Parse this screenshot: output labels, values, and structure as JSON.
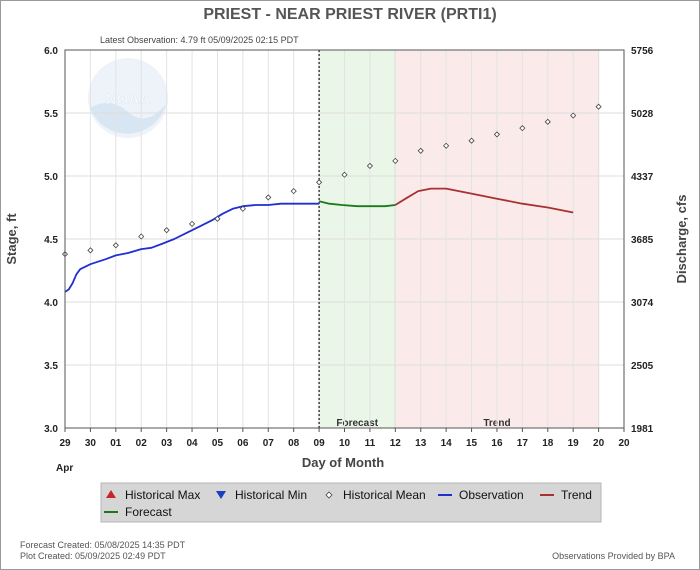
{
  "chart_data": {
    "type": "line",
    "title": "PRIEST - NEAR PRIEST RIVER  (PRTI1)",
    "subtitle": "Latest Observation: 4.79 ft 05/09/2025 02:15 PDT",
    "xlabel": "Day of Month",
    "ylabel": "Stage, ft",
    "y2label": "Discharge, cfs",
    "month_label": "Apr",
    "x_ticks": [
      "29",
      "30",
      "01",
      "02",
      "03",
      "04",
      "05",
      "06",
      "07",
      "08",
      "09",
      "10",
      "11",
      "12",
      "13",
      "14",
      "15",
      "16",
      "17",
      "18",
      "19",
      "20"
    ],
    "ylim": [
      3.0,
      6.0
    ],
    "y_ticks": [
      "3.0",
      "3.5",
      "4.0",
      "4.5",
      "5.0",
      "5.5",
      "6.0"
    ],
    "y2_ticks": [
      "1981",
      "2505",
      "3074",
      "3685",
      "4337",
      "5028",
      "5756"
    ],
    "bands": [
      {
        "label": "Forecast",
        "from": 10.0,
        "to": 13.0,
        "color": "#eaf6e8",
        "edge": "#7fcf7f"
      },
      {
        "label": "Trend",
        "from": 13.0,
        "to": 21.0,
        "color": "#fbeaea",
        "edge": "#e6b5b5"
      }
    ],
    "now_x": 10.0,
    "series": [
      {
        "name": "Observation",
        "color": "#1f2fd0",
        "points": [
          [
            0,
            4.08
          ],
          [
            0.15,
            4.1
          ],
          [
            0.3,
            4.15
          ],
          [
            0.45,
            4.22
          ],
          [
            0.6,
            4.26
          ],
          [
            0.8,
            4.28
          ],
          [
            1,
            4.3
          ],
          [
            1.3,
            4.32
          ],
          [
            1.6,
            4.34
          ],
          [
            2,
            4.37
          ],
          [
            2.5,
            4.39
          ],
          [
            3,
            4.42
          ],
          [
            3.4,
            4.43
          ],
          [
            3.8,
            4.46
          ],
          [
            4.3,
            4.5
          ],
          [
            4.8,
            4.55
          ],
          [
            5.3,
            4.6
          ],
          [
            5.8,
            4.65
          ],
          [
            6.2,
            4.7
          ],
          [
            6.6,
            4.74
          ],
          [
            7,
            4.76
          ],
          [
            7.5,
            4.77
          ],
          [
            8,
            4.77
          ],
          [
            8.5,
            4.78
          ],
          [
            9,
            4.78
          ],
          [
            9.5,
            4.78
          ],
          [
            10,
            4.78
          ]
        ]
      },
      {
        "name": "Forecast",
        "color": "#1a7a1a",
        "points": [
          [
            10,
            4.8
          ],
          [
            10.4,
            4.78
          ],
          [
            10.9,
            4.77
          ],
          [
            11.5,
            4.76
          ],
          [
            12,
            4.76
          ],
          [
            12.6,
            4.76
          ],
          [
            13,
            4.77
          ]
        ]
      },
      {
        "name": "Trend",
        "color": "#a83232",
        "points": [
          [
            13,
            4.77
          ],
          [
            13.4,
            4.82
          ],
          [
            13.9,
            4.88
          ],
          [
            14.4,
            4.9
          ],
          [
            15,
            4.9
          ],
          [
            15.5,
            4.88
          ],
          [
            16,
            4.86
          ],
          [
            17,
            4.82
          ],
          [
            18,
            4.78
          ],
          [
            19,
            4.75
          ],
          [
            20,
            4.71
          ]
        ]
      },
      {
        "name": "Historical Mean",
        "color": "#444444",
        "points": [
          [
            0,
            4.38
          ],
          [
            1,
            4.41
          ],
          [
            2,
            4.45
          ],
          [
            3,
            4.52
          ],
          [
            4,
            4.57
          ],
          [
            5,
            4.62
          ],
          [
            6,
            4.66
          ],
          [
            7,
            4.74
          ],
          [
            8,
            4.83
          ],
          [
            9,
            4.88
          ],
          [
            10,
            4.95
          ],
          [
            11,
            5.01
          ],
          [
            12,
            5.08
          ],
          [
            13,
            5.12
          ],
          [
            14,
            5.2
          ],
          [
            15,
            5.24
          ],
          [
            16,
            5.28
          ],
          [
            17,
            5.33
          ],
          [
            18,
            5.38
          ],
          [
            19,
            5.43
          ],
          [
            20,
            5.48
          ],
          [
            21,
            5.55
          ]
        ]
      }
    ],
    "legend": [
      {
        "label": "Historical Max",
        "marker": "triangle-up",
        "color": "#c62828"
      },
      {
        "label": "Historical Min",
        "marker": "triangle-down",
        "color": "#1a3fbf"
      },
      {
        "label": "Historical Mean",
        "marker": "diamond",
        "color": "#444444"
      },
      {
        "label": "Observation",
        "marker": "line",
        "color": "#1f2fd0"
      },
      {
        "label": "Trend",
        "marker": "line",
        "color": "#a83232"
      },
      {
        "label": "Forecast",
        "marker": "line",
        "color": "#1a7a1a"
      }
    ],
    "legend_placement": "bottom",
    "grid": true,
    "watermark": "NOAA"
  },
  "footer": {
    "forecast_created": "Forecast Created: 05/08/2025 14:35 PDT",
    "plot_created": "Plot Created: 05/09/2025 02:49 PDT",
    "credit": "Observations Provided by BPA"
  }
}
